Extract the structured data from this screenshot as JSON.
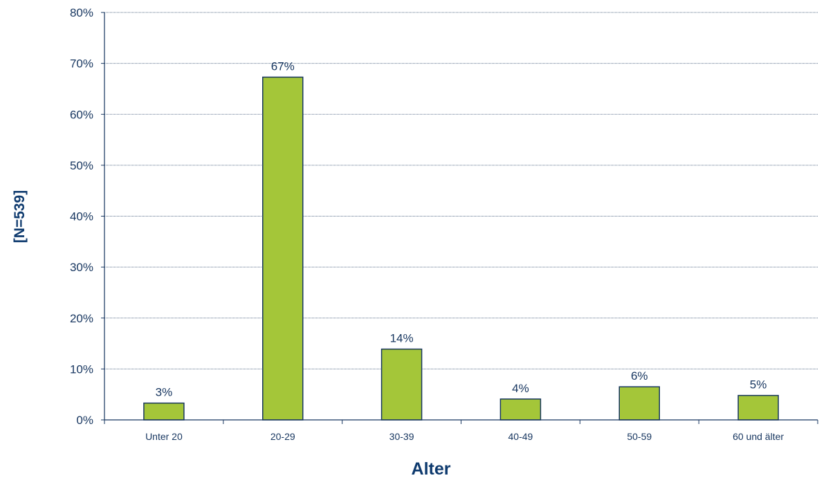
{
  "chart_data": {
    "type": "bar",
    "categories": [
      "Unter 20",
      "20-29",
      "30-39",
      "40-49",
      "50-59",
      "60 und älter"
    ],
    "values": [
      3.3,
      67.3,
      13.9,
      4.1,
      6.5,
      4.8
    ],
    "data_labels": [
      "3%",
      "67%",
      "14%",
      "4%",
      "6%",
      "5%"
    ],
    "title": "",
    "xlabel": "Alter",
    "ylabel": "[N=539]",
    "ylim": [
      0,
      80
    ],
    "yticks": [
      0,
      10,
      20,
      30,
      40,
      50,
      60,
      70,
      80
    ],
    "ytick_labels": [
      "0%",
      "10%",
      "20%",
      "30%",
      "40%",
      "50%",
      "60%",
      "70%",
      "80%"
    ],
    "grid": true,
    "bar_color": "#a4c639",
    "bar_edge_color": "#16355f",
    "text_color": "#16355f"
  }
}
